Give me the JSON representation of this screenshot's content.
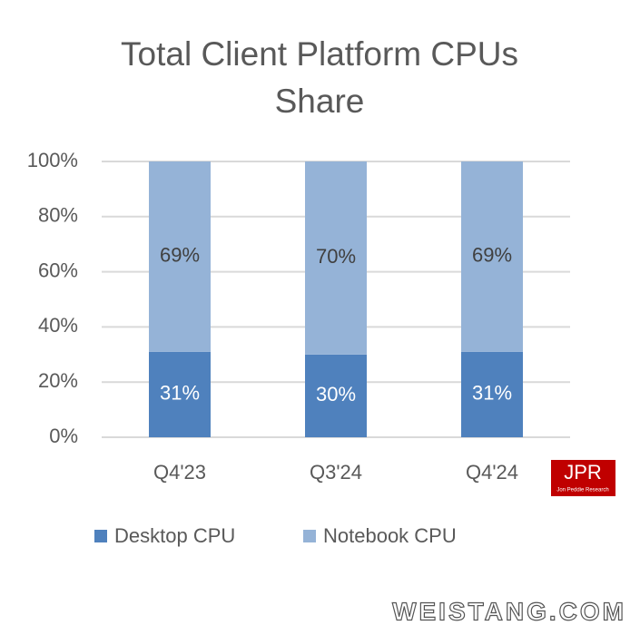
{
  "chart_data": {
    "type": "stacked-bar",
    "title": "Total Client Platform CPUs Share",
    "categories": [
      "Q4'23",
      "Q3'24",
      "Q4'24"
    ],
    "series": [
      {
        "name": "Desktop CPU",
        "color": "#4f81bd",
        "values": [
          31,
          30,
          31
        ],
        "value_labels": [
          "31%",
          "30%",
          "31%"
        ]
      },
      {
        "name": "Notebook CPU",
        "color": "#95b3d7",
        "values": [
          69,
          70,
          69
        ],
        "value_labels": [
          "69%",
          "70%",
          "69%"
        ]
      }
    ],
    "ylim": [
      0,
      100
    ],
    "yticks": [
      {
        "value": 0,
        "label": "0%"
      },
      {
        "value": 20,
        "label": "20%"
      },
      {
        "value": 40,
        "label": "40%"
      },
      {
        "value": 60,
        "label": "60%"
      },
      {
        "value": 80,
        "label": "80%"
      },
      {
        "value": 100,
        "label": "100%"
      }
    ],
    "grid": true,
    "legend": "bottom",
    "logo_text": "JPR",
    "logo_subtext": "Jon Peddie Research",
    "watermark": "WEISTANG.COM"
  }
}
